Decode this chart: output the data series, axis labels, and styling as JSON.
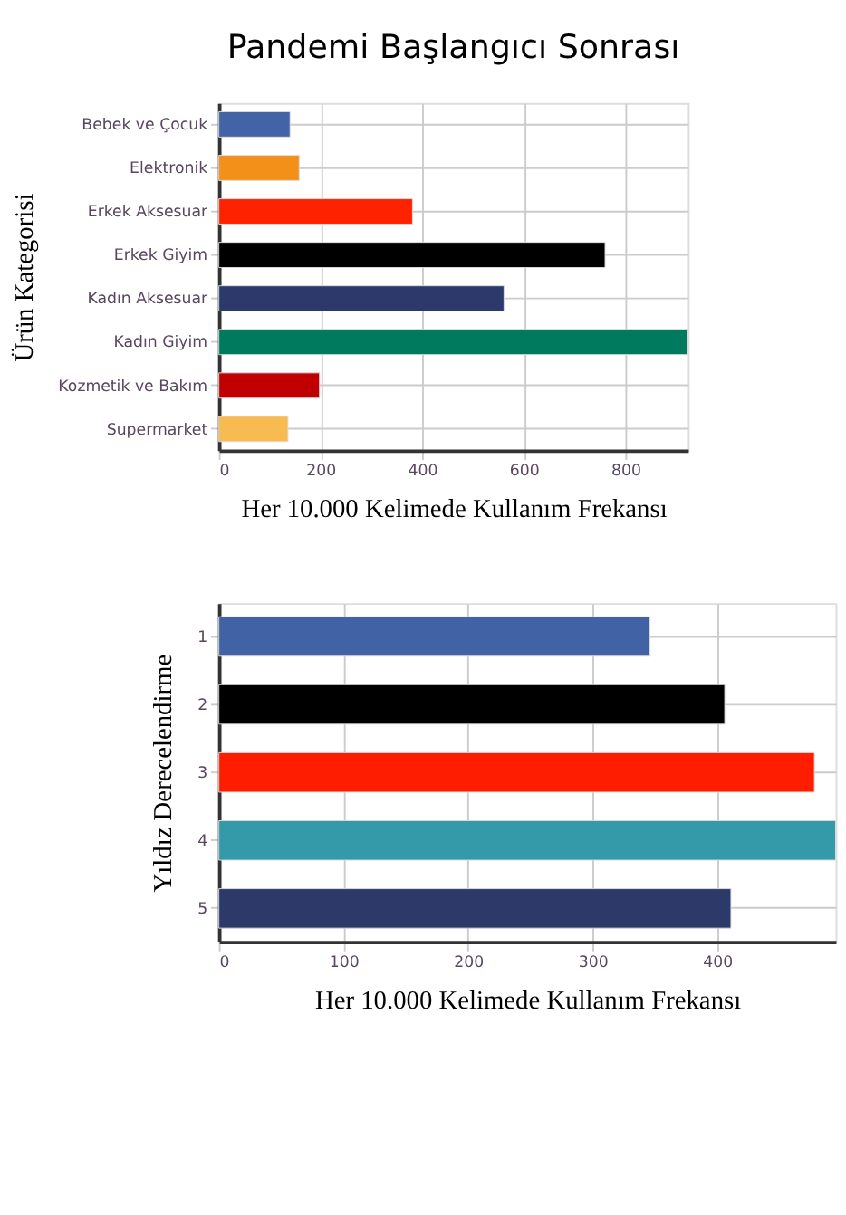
{
  "chart_data": [
    {
      "type": "bar",
      "orientation": "horizontal",
      "title": "Pandemi Başlangıcı Sonrası",
      "xlabel": "Her 10.000 Kelimede Kullanım Frekansı",
      "ylabel": "Ürün Kategorisi",
      "categories": [
        "Bebek ve Çocuk",
        "Elektronik",
        "Erkek Aksesuar",
        "Erkek Giyim",
        "Kadın Aksesuar",
        "Kadın Giyim",
        "Kozmetik ve Bakım",
        "Supermarket"
      ],
      "values": [
        140,
        158,
        381,
        760,
        561,
        923,
        198,
        136
      ],
      "colors": [
        "#4263a6",
        "#f39019",
        "#ff2200",
        "#000000",
        "#2b3a6b",
        "#007a5e",
        "#c00000",
        "#f8bb4f"
      ],
      "xlim": [
        0,
        923
      ],
      "xticks": [
        0,
        200,
        400,
        600,
        800
      ],
      "grid": true
    },
    {
      "type": "bar",
      "orientation": "horizontal",
      "xlabel": "Her 10.000 Kelimede Kullanım Frekansı",
      "ylabel": "Yıldız Derecelendirme",
      "categories": [
        "1",
        "2",
        "3",
        "4",
        "5"
      ],
      "values": [
        346,
        406,
        478,
        495,
        411
      ],
      "colors": [
        "#4162a4",
        "#000000",
        "#ff1d00",
        "#3499a8",
        "#2c3a6a"
      ],
      "xlim": [
        0,
        495
      ],
      "xticks": [
        0,
        100,
        200,
        300,
        400
      ],
      "grid": true
    }
  ]
}
